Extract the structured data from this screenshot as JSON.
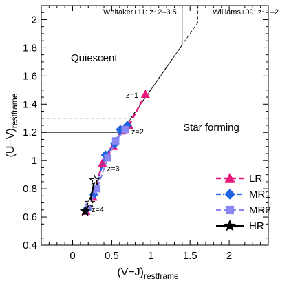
{
  "chart_data": {
    "type": "line",
    "xlabel": "(V−J)",
    "xlabel_sub": "restframe",
    "ylabel": "(U−V)",
    "ylabel_sub": "restframe",
    "xlim": [
      -0.4,
      2.5
    ],
    "ylim": [
      0.4,
      2.1
    ],
    "xticks": [
      0,
      0.5,
      1,
      1.5,
      2
    ],
    "xtick_labels": [
      "0",
      "0.5",
      "1",
      "1.5",
      "2"
    ],
    "yticks": [
      0.4,
      0.6,
      0.8,
      1,
      1.2,
      1.4,
      1.6,
      1.8,
      2
    ],
    "ytick_labels": [
      "0.4",
      "0.6",
      "0.8",
      "1",
      "1.2",
      "1.4",
      "1.6",
      "1.8",
      "2"
    ],
    "grid": false,
    "legend_position": "bottom-right",
    "region_labels": [
      "Quiescent",
      "Star forming"
    ],
    "boundaries": [
      {
        "label": "Whitaker+11: z~2–3.5",
        "style": "solid",
        "x": [
          -0.4,
          0.62,
          1.4,
          1.4
        ],
        "y": [
          1.2,
          1.2,
          1.82,
          2.1
        ]
      },
      {
        "label": "Williams+09: z~1–2",
        "style": "dashed",
        "x": [
          -0.4,
          0.74,
          1.6,
          1.6
        ],
        "y": [
          1.3,
          1.3,
          1.98,
          2.1
        ]
      }
    ],
    "redshift_labels": [
      {
        "text": "z=1",
        "x": 0.68,
        "y": 1.47
      },
      {
        "text": "z=2",
        "x": 0.75,
        "y": 1.21
      },
      {
        "text": "z=3",
        "x": 0.44,
        "y": 0.95
      },
      {
        "text": "z=4",
        "x": 0.24,
        "y": 0.66
      }
    ],
    "series": [
      {
        "name": "LR",
        "color": "#e8197d",
        "marker": "triangle",
        "dash": "dashed",
        "x": [
          0.17,
          0.26,
          0.38,
          0.52,
          0.63,
          0.72,
          0.93
        ],
        "y": [
          0.64,
          0.74,
          0.98,
          1.1,
          1.21,
          1.25,
          1.47
        ]
      },
      {
        "name": "MR1",
        "color": "#1f63e0",
        "marker": "diamond",
        "dash": "dashdot",
        "x": [
          0.17,
          0.27,
          0.42,
          0.54,
          0.61,
          0.7
        ],
        "y": [
          0.65,
          0.76,
          1.04,
          1.12,
          1.22,
          1.25
        ]
      },
      {
        "name": "MR2",
        "color": "#8a86f2",
        "marker": "square",
        "dash": "dashed",
        "x": [
          0.2,
          0.31,
          0.45,
          0.55,
          0.67
        ],
        "y": [
          0.67,
          0.8,
          1.02,
          1.14,
          1.22
        ]
      },
      {
        "name": "HR",
        "color": "#000000",
        "marker": "star",
        "dash": "solid",
        "x": [
          0.16,
          0.22,
          0.28
        ],
        "y": [
          0.64,
          0.7,
          0.86
        ]
      }
    ]
  }
}
